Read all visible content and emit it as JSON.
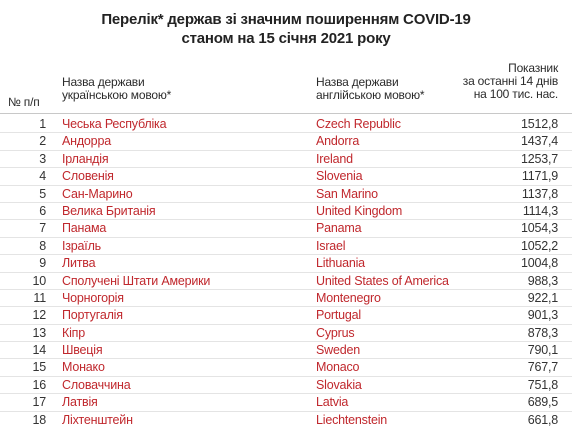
{
  "title": {
    "line1": "Перелік* держав зі значним поширенням COVID-19",
    "line2": "станом на 15 січня 2021 року"
  },
  "headers": {
    "number": "№ п/п",
    "ua_line1": "Назва держави",
    "ua_line2": "українською мовою*",
    "en_line1": "Назва держави",
    "en_line2": "англійською мовою*",
    "indicator_line1": "Показник",
    "indicator_line2": "за останні 14 днів",
    "indicator_line3": "на 100 тис. нас."
  },
  "colors": {
    "country_name": "#c0282d",
    "text": "#333333"
  },
  "rows": [
    {
      "n": "1",
      "ua": "Чеська Республіка",
      "en": "Czech Republic",
      "value": "1512,8"
    },
    {
      "n": "2",
      "ua": "Андорра",
      "en": "Andorra",
      "value": "1437,4"
    },
    {
      "n": "3",
      "ua": "Ірландія",
      "en": "Ireland",
      "value": "1253,7"
    },
    {
      "n": "4",
      "ua": "Словенія",
      "en": "Slovenia",
      "value": "1171,9"
    },
    {
      "n": "5",
      "ua": "Сан-Марино",
      "en": "San Marino",
      "value": "1137,8"
    },
    {
      "n": "6",
      "ua": "Велика Британія",
      "en": "United Kingdom",
      "value": "1114,3"
    },
    {
      "n": "7",
      "ua": "Панама",
      "en": "Panama",
      "value": "1054,3"
    },
    {
      "n": "8",
      "ua": "Ізраїль",
      "en": "Israel",
      "value": "1052,2"
    },
    {
      "n": "9",
      "ua": "Литва",
      "en": "Lithuania",
      "value": "1004,8"
    },
    {
      "n": "10",
      "ua": "Сполучені Штати Америки",
      "en": "United States of America",
      "value": "988,3"
    },
    {
      "n": "11",
      "ua": "Чорногорія",
      "en": "Montenegro",
      "value": "922,1"
    },
    {
      "n": "12",
      "ua": "Португалія",
      "en": "Portugal",
      "value": "901,3"
    },
    {
      "n": "13",
      "ua": "Кіпр",
      "en": "Cyprus",
      "value": "878,3"
    },
    {
      "n": "14",
      "ua": "Швеція",
      "en": "Sweden",
      "value": "790,1"
    },
    {
      "n": "15",
      "ua": "Монако",
      "en": "Monaco",
      "value": "767,7"
    },
    {
      "n": "16",
      "ua": "Словаччина",
      "en": "Slovakia",
      "value": "751,8"
    },
    {
      "n": "17",
      "ua": "Латвія",
      "en": "Latvia",
      "value": "689,5"
    },
    {
      "n": "18",
      "ua": "Ліхтенштейн",
      "en": "Liechtenstein",
      "value": "661,8"
    }
  ]
}
